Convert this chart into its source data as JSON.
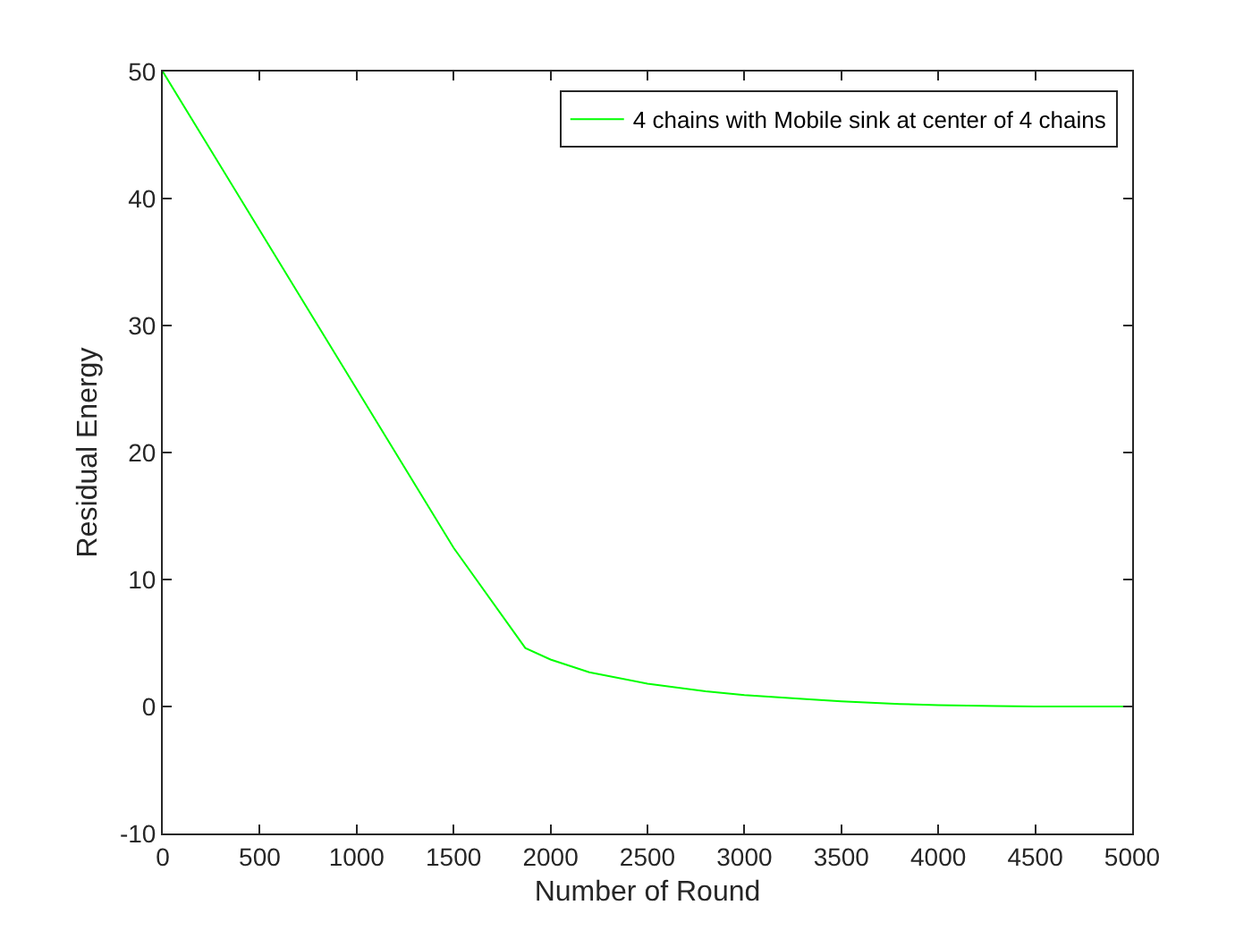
{
  "chart_data": {
    "type": "line",
    "xlabel": "Number of Round",
    "ylabel": "Residual Energy",
    "series": [
      {
        "name": "4 chains with Mobile sink at center of 4 chains",
        "color": "#00ff00",
        "x": [
          0,
          500,
          1000,
          1500,
          1870,
          2000,
          2200,
          2500,
          2800,
          3000,
          3300,
          3500,
          3800,
          4000,
          4300,
          4500,
          5000
        ],
        "values": [
          50,
          37.5,
          25,
          12.5,
          4.6,
          3.7,
          2.7,
          1.8,
          1.2,
          0.9,
          0.6,
          0.4,
          0.2,
          0.1,
          0.03,
          0,
          0
        ]
      }
    ],
    "xlim": [
      0,
      5000
    ],
    "xticks": [
      0,
      500,
      1000,
      1500,
      2000,
      2500,
      3000,
      3500,
      4000,
      4500,
      5000
    ],
    "ylim": [
      -10,
      50
    ],
    "yticks": [
      -10,
      0,
      10,
      20,
      30,
      40,
      50
    ],
    "grid": false,
    "legend": "top right",
    "marker": "none",
    "line_style": "solid"
  }
}
